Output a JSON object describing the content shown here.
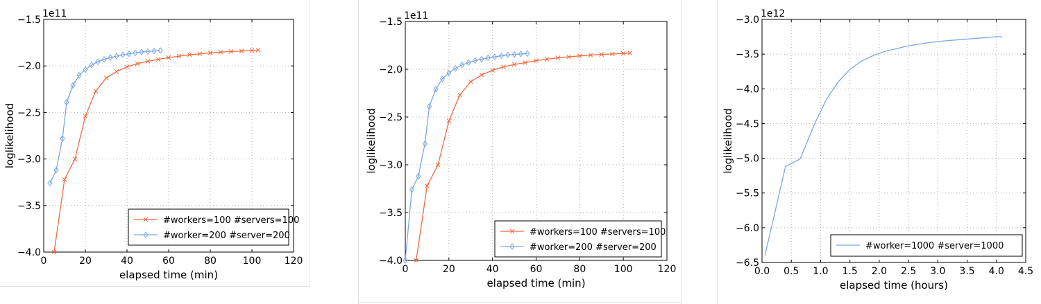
{
  "chart_data": [
    {
      "type": "line",
      "xlabel": "elapsed time (min)",
      "ylabel": "loglikelihood",
      "y_multiplier": "1e11",
      "xlim": [
        0,
        120
      ],
      "ylim": [
        -4.0,
        -1.5
      ],
      "xticks": [
        "0",
        "20",
        "40",
        "60",
        "80",
        "100",
        "120"
      ],
      "yticks": [
        "−4.0",
        "−3.5",
        "−3.0",
        "−2.5",
        "−2.0",
        "−1.5"
      ],
      "grid": true,
      "legend_position": "lower-right",
      "series": [
        {
          "name": "#workers=100 #servers=100",
          "color": "#f4693f",
          "marker": "x",
          "x": [
            5,
            10,
            15,
            20,
            25,
            30,
            35,
            40,
            45,
            50,
            55,
            60,
            65,
            70,
            75,
            80,
            85,
            90,
            95,
            100,
            103
          ],
          "y": [
            -4.0,
            -3.22,
            -3.0,
            -2.54,
            -2.27,
            -2.13,
            -2.06,
            -2.01,
            -1.975,
            -1.95,
            -1.93,
            -1.91,
            -1.895,
            -1.88,
            -1.87,
            -1.86,
            -1.852,
            -1.845,
            -1.84,
            -1.835,
            -1.83
          ]
        },
        {
          "name": "#worker=200 #server=200",
          "color": "#7aa6e6",
          "marker": "diamond",
          "x": [
            3,
            6,
            9,
            11,
            14,
            17,
            20,
            23,
            26,
            29,
            32,
            35,
            38,
            41,
            44,
            47,
            50,
            53,
            56
          ],
          "y": [
            -3.26,
            -3.12,
            -2.78,
            -2.39,
            -2.21,
            -2.1,
            -2.04,
            -1.99,
            -1.955,
            -1.93,
            -1.91,
            -1.895,
            -1.88,
            -1.87,
            -1.86,
            -1.85,
            -1.845,
            -1.84,
            -1.835
          ]
        }
      ]
    },
    {
      "type": "line",
      "xlabel": "elapsed time (min)",
      "ylabel": "loglikelihood",
      "y_multiplier": "1e11",
      "xlim": [
        0,
        120
      ],
      "ylim": [
        -4.0,
        -1.5
      ],
      "xticks": [
        "0",
        "20",
        "40",
        "60",
        "80",
        "100",
        "120"
      ],
      "yticks": [
        "−4.0",
        "−3.5",
        "−3.0",
        "−2.5",
        "−2.0",
        "−1.5"
      ],
      "grid": true,
      "legend_position": "lower-right",
      "series": [
        {
          "name": "#workers=100 #servers=100",
          "color": "#f4693f",
          "marker": "x",
          "x": [
            5,
            10,
            15,
            20,
            25,
            30,
            35,
            40,
            45,
            50,
            55,
            60,
            65,
            70,
            75,
            80,
            85,
            90,
            95,
            100,
            103
          ],
          "y": [
            -4.0,
            -3.22,
            -3.0,
            -2.54,
            -2.27,
            -2.13,
            -2.06,
            -2.01,
            -1.975,
            -1.95,
            -1.93,
            -1.91,
            -1.895,
            -1.88,
            -1.87,
            -1.86,
            -1.852,
            -1.845,
            -1.84,
            -1.835,
            -1.83
          ]
        },
        {
          "name": "#worker=200 #server=200",
          "color": "#7aa6e6",
          "marker": "diamond",
          "x": [
            0,
            3,
            6,
            9,
            11,
            14,
            17,
            20,
            23,
            26,
            29,
            32,
            35,
            38,
            41,
            44,
            47,
            50,
            53,
            56
          ],
          "y": [
            -4.0,
            -3.26,
            -3.12,
            -2.78,
            -2.39,
            -2.21,
            -2.1,
            -2.04,
            -1.99,
            -1.955,
            -1.93,
            -1.91,
            -1.895,
            -1.88,
            -1.87,
            -1.86,
            -1.85,
            -1.845,
            -1.84,
            -1.835
          ]
        }
      ]
    },
    {
      "type": "line",
      "xlabel": "elapsed time (hours)",
      "ylabel": "loglikelihood",
      "y_multiplier": "1e12",
      "xlim": [
        0.0,
        4.5
      ],
      "ylim": [
        -6.5,
        -3.0
      ],
      "xticks": [
        "0.0",
        "0.5",
        "1.0",
        "1.5",
        "2.0",
        "2.5",
        "3.0",
        "3.5",
        "4.0",
        "4.5"
      ],
      "yticks": [
        "−6.5",
        "−6.0",
        "−5.5",
        "−5.0",
        "−4.5",
        "−4.0",
        "−3.5",
        "−3.0"
      ],
      "grid": true,
      "legend_position": "lower-right",
      "series": [
        {
          "name": "#worker=1000 #server=1000",
          "color": "#7aa6e6",
          "marker": "none",
          "x": [
            0.05,
            0.4,
            0.65,
            0.9,
            1.1,
            1.3,
            1.5,
            1.7,
            1.9,
            2.1,
            2.3,
            2.5,
            2.8,
            3.1,
            3.4,
            3.7,
            4.0,
            4.1
          ],
          "y": [
            -6.4,
            -5.12,
            -5.01,
            -4.5,
            -4.15,
            -3.9,
            -3.72,
            -3.6,
            -3.52,
            -3.46,
            -3.42,
            -3.38,
            -3.34,
            -3.31,
            -3.29,
            -3.27,
            -3.25,
            -3.25
          ]
        }
      ]
    }
  ]
}
